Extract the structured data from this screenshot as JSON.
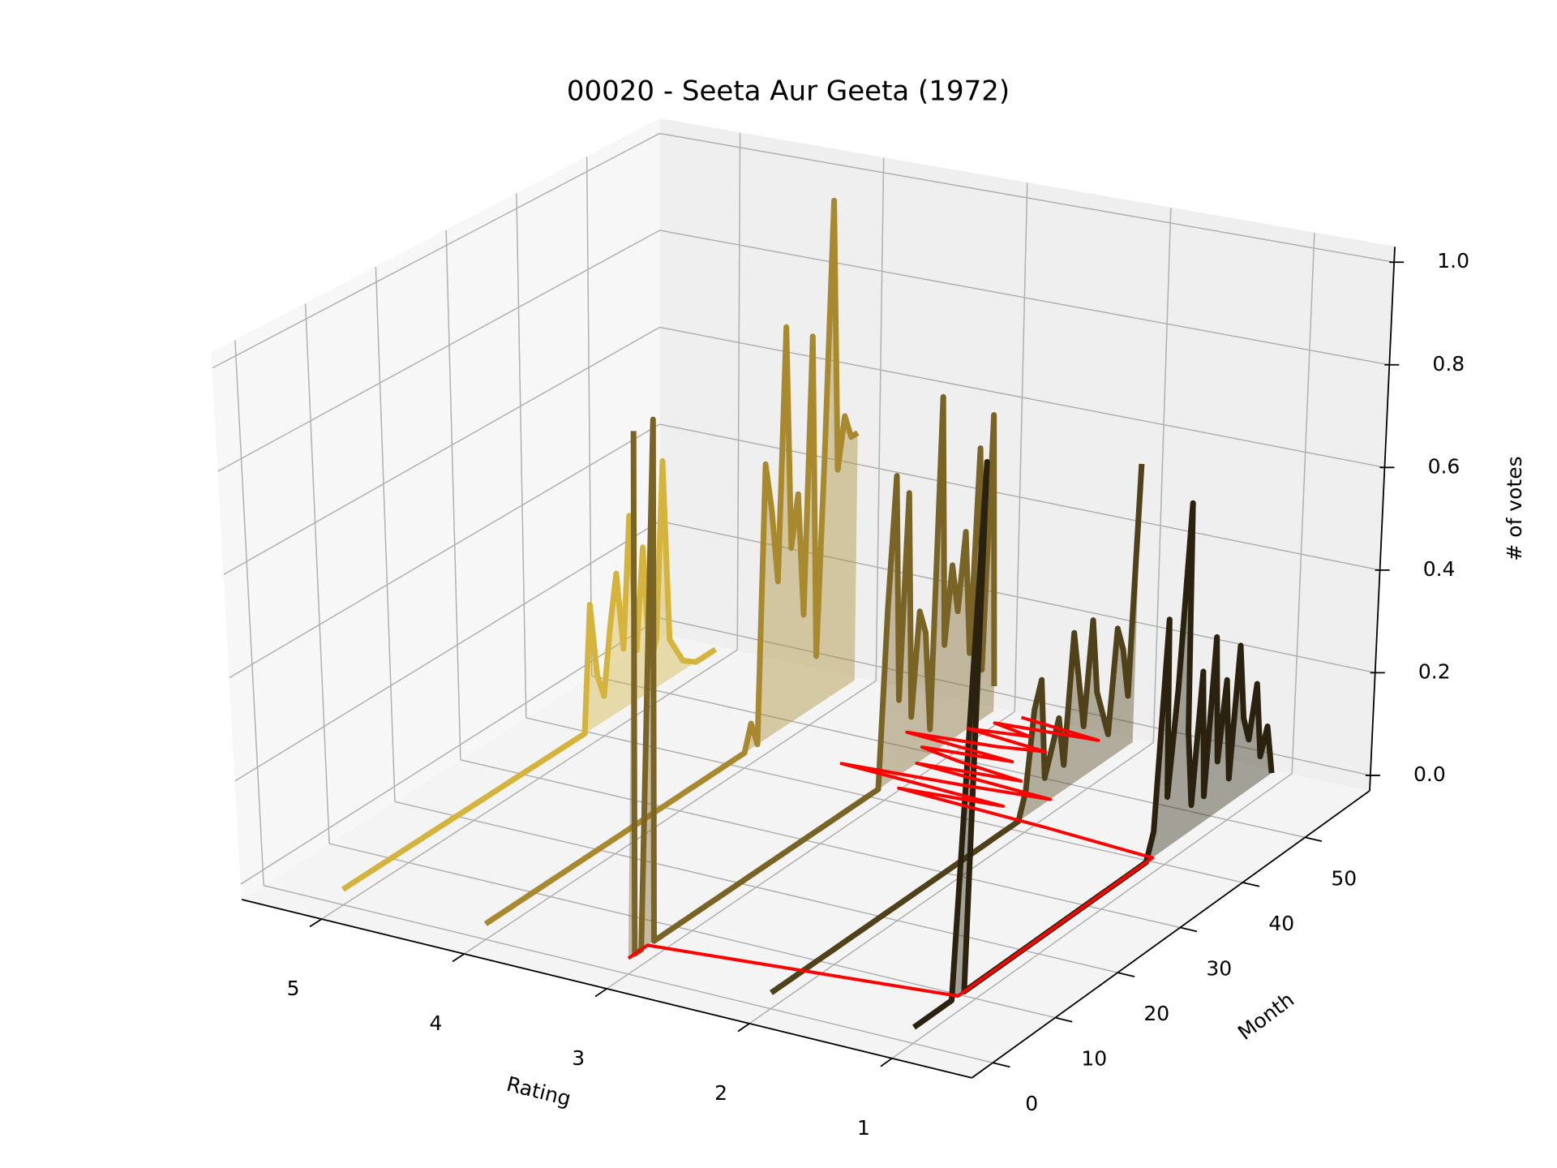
{
  "chart_data": {
    "type": "line3d",
    "title": "00020 - Seeta Aur Geeta (1972)",
    "xlabel": "Rating",
    "ylabel": "Month",
    "zlabel": "# of votes",
    "xlim": [
      0.44,
      5.56
    ],
    "ylim": [
      -3.35,
      60.35
    ],
    "zlim": [
      -0.03,
      1.03
    ],
    "xticks": [
      1,
      2,
      3,
      4,
      5
    ],
    "yticks": [
      0,
      10,
      20,
      30,
      40,
      50
    ],
    "zticks": [
      {
        "value": 0,
        "label": "0.0"
      },
      {
        "value": 0.2,
        "label": "0.2"
      },
      {
        "value": 0.4,
        "label": "0.4"
      },
      {
        "value": 0.6,
        "label": "0.6"
      },
      {
        "value": 0.8,
        "label": "0.8"
      },
      {
        "value": 1,
        "label": "1.0"
      }
    ],
    "grid": true,
    "y": [
      0,
      1,
      2,
      3,
      4,
      5,
      6,
      7,
      8,
      9,
      10,
      11,
      12,
      13,
      14,
      15,
      16,
      17,
      18,
      19,
      20,
      21,
      22,
      23,
      24,
      25,
      26,
      27,
      28,
      29,
      30,
      31,
      32,
      33,
      34,
      35,
      36,
      37,
      38,
      39,
      40,
      41,
      42,
      43,
      44,
      45,
      46,
      47,
      48,
      49,
      50,
      51,
      52,
      53,
      54,
      55,
      56,
      57
    ],
    "series": [
      {
        "rating": 5,
        "color": "#d4b43c",
        "values": [
          0,
          0,
          0,
          0,
          0,
          0,
          0,
          0,
          0,
          0,
          0,
          0,
          0,
          0,
          0,
          0,
          0,
          0,
          0,
          0,
          0,
          0,
          0,
          0,
          0,
          0,
          0,
          0,
          0,
          0,
          0,
          0,
          0,
          0,
          0,
          0,
          0,
          0,
          0.25,
          0.1,
          0.05,
          0.18,
          0.28,
          0.12,
          0.38,
          0.1,
          0.3,
          0.05,
          0.1,
          0.45,
          0.08,
          0.05,
          0.02,
          0.01,
          0,
          0,
          0,
          0
        ]
      },
      {
        "rating": 4,
        "color": "#a8892e",
        "values": [
          0,
          0,
          0,
          0,
          0,
          0,
          0,
          0,
          0,
          0,
          0,
          0,
          0,
          0,
          0,
          0,
          0,
          0,
          0,
          0,
          0,
          0,
          0,
          0,
          0,
          0,
          0,
          0,
          0,
          0,
          0,
          0,
          0,
          0,
          0,
          0,
          0,
          0,
          0,
          0,
          0,
          0.05,
          0,
          0.55,
          0.45,
          0.3,
          0.8,
          0.35,
          0.45,
          0.2,
          0.75,
          0.1,
          0.5,
          1.0,
          0.45,
          0.55,
          0.5,
          0.5
        ]
      },
      {
        "rating": 3,
        "color": "#7a6425",
        "values": [
          1,
          0,
          0,
          1,
          0,
          0,
          0,
          0,
          0,
          0,
          0,
          0,
          0,
          0,
          0,
          0,
          0,
          0,
          0,
          0,
          0,
          0,
          0,
          0,
          0,
          0,
          0,
          0,
          0,
          0,
          0,
          0,
          0,
          0,
          0,
          0,
          0,
          0,
          0,
          0,
          0.35,
          0.6,
          0.15,
          0.55,
          0.1,
          0.3,
          0.25,
          0.05,
          0.7,
          0.2,
          0.35,
          0.25,
          0.4,
          0.15,
          0.55,
          0.1,
          0.6,
          0.05
        ]
      },
      {
        "rating": 2,
        "color": "#4f411a",
        "values": [
          0,
          0,
          0,
          0,
          0,
          0,
          0,
          0,
          0,
          0,
          0,
          0,
          0,
          0,
          0,
          0,
          0,
          0,
          0,
          0,
          0,
          0,
          0,
          0,
          0,
          0,
          0,
          0,
          0,
          0,
          0,
          0,
          0,
          0,
          0,
          0,
          0,
          0,
          0,
          0,
          0.05,
          0.2,
          0.25,
          0.05,
          0.1,
          0.15,
          0.05,
          0.3,
          0.2,
          0.1,
          0.3,
          0.15,
          0.1,
          0.05,
          0.25,
          0.2,
          0.1,
          0.55
        ]
      },
      {
        "rating": 1,
        "color": "#2a220e",
        "values": [
          0,
          0,
          0,
          0,
          0,
          0,
          0,
          1,
          0,
          0,
          0,
          0,
          0,
          0,
          0,
          0,
          0,
          0,
          0,
          0,
          0,
          0,
          0,
          0,
          0,
          0,
          0,
          0,
          0,
          0,
          0,
          0,
          0,
          0,
          0,
          0,
          0,
          0,
          0.05,
          0.45,
          0.1,
          0.3,
          0.65,
          0.2,
          0.05,
          0.3,
          0.05,
          0.35,
          0.1,
          0.25,
          0.05,
          0.3,
          0.15,
          0.1,
          0.2,
          0.05,
          0.1,
          0
        ]
      }
    ],
    "mean_line": {
      "color": "#ff0000",
      "y": [
        0,
        3,
        7,
        38,
        39,
        40,
        41,
        42,
        43,
        44,
        45,
        46,
        47,
        48,
        49,
        50,
        51,
        52,
        53,
        54,
        55,
        56,
        57
      ],
      "x": [
        3,
        3,
        1,
        1,
        1.8,
        2.9,
        2.2,
        3.4,
        2.6,
        2.0,
        3.0,
        2.3,
        2.8,
        3.1,
        2.5,
        3.3,
        2.7,
        2.4,
        3.0,
        2.6,
        2.9,
        2.2,
        2.8
      ]
    }
  }
}
